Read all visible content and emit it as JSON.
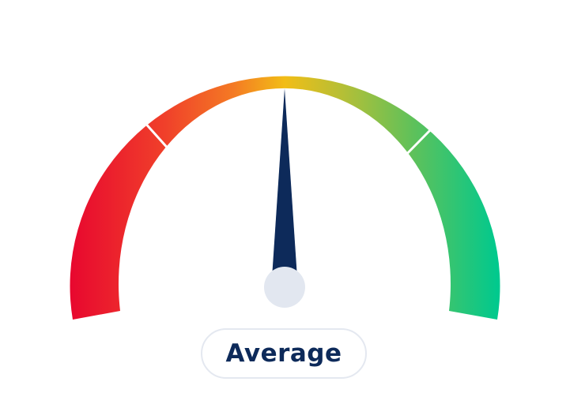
{
  "gauge": {
    "status_label": "Average",
    "value_fraction": 0.5,
    "segment_count": 3,
    "colors": {
      "red": "#e8082f",
      "orange": "#f46a26",
      "yellow": "#f2bd16",
      "yellow_green": "#b3bf37",
      "green": "#5fc15a",
      "teal": "#00c98e",
      "needle": "#0d2a5a",
      "hub": "#e2e7f0",
      "pill_border": "#e4e8f0",
      "label_text": "#0d2a5a"
    },
    "icons": {
      "needle": "gauge-needle",
      "hub": "gauge-hub"
    }
  }
}
